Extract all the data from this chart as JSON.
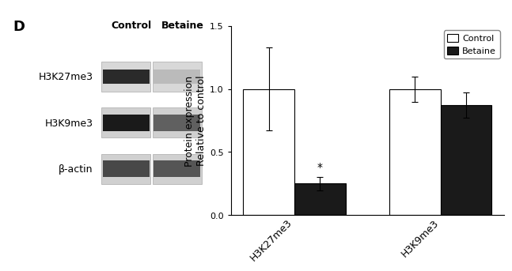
{
  "panel_label": "D",
  "wb_labels": [
    "H3K27me3",
    "H3K9me3",
    "β-actin"
  ],
  "wb_col_labels": [
    "Control",
    "Betaine"
  ],
  "bar_groups": [
    "H3K27me3",
    "H3K9me3"
  ],
  "control_values": [
    1.0,
    1.0
  ],
  "betaine_values": [
    0.25,
    0.87
  ],
  "control_errors": [
    0.33,
    0.1
  ],
  "betaine_errors": [
    0.055,
    0.1
  ],
  "ylabel_line1": "Protein expression",
  "ylabel_line2": "Relative to control",
  "legend_labels": [
    "Control",
    "Betaine"
  ],
  "ylim": [
    0,
    1.5
  ],
  "yticks": [
    0.0,
    0.5,
    1.0,
    1.5
  ],
  "significance": "*",
  "bar_width": 0.35,
  "control_color": "#ffffff",
  "betaine_color": "#1a1a1a",
  "edge_color": "#000000",
  "error_color": "#000000",
  "font_size": 9,
  "tick_font_size": 8
}
